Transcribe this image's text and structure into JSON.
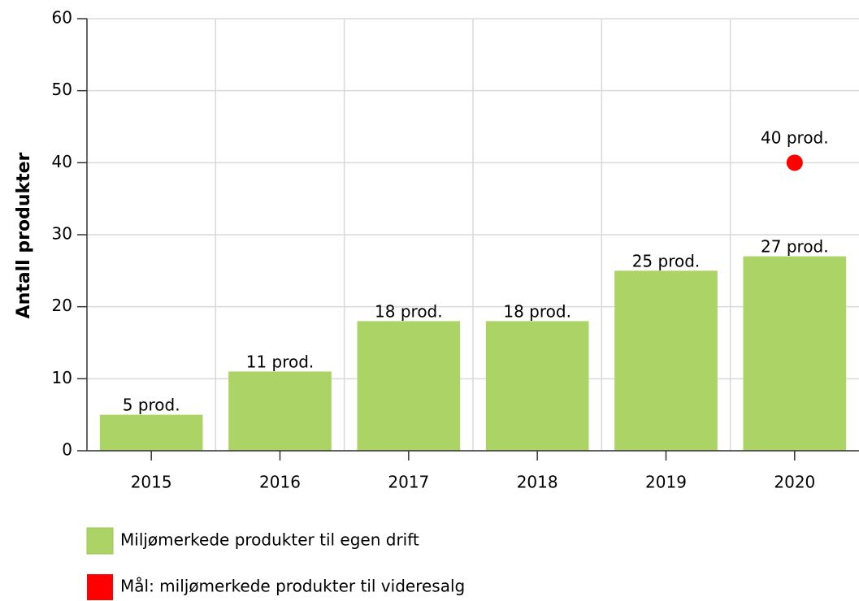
{
  "chart_data": {
    "type": "bar",
    "y_label": "Antall produkter",
    "categories": [
      "2015",
      "2016",
      "2017",
      "2018",
      "2019",
      "2020"
    ],
    "series": [
      {
        "name": "Miljømerkede produkter til egen drift",
        "type": "bar",
        "color": "#acd365",
        "values": [
          5,
          11,
          18,
          18,
          25,
          27
        ],
        "value_labels": [
          "5 prod.",
          "11 prod.",
          "18 prod.",
          "18 prod.",
          "25 prod.",
          "27 prod."
        ]
      },
      {
        "name": "Mål: miljømerkede produkter til videresalg",
        "type": "scatter",
        "color": "#ff0000",
        "values": [
          null,
          null,
          null,
          null,
          null,
          40
        ],
        "value_labels": [
          null,
          null,
          null,
          null,
          null,
          "40 prod."
        ]
      }
    ],
    "ylim": [
      0,
      60
    ],
    "yticks": [
      0,
      10,
      20,
      30,
      40,
      50,
      60
    ],
    "grid": true,
    "legend": "bottom"
  }
}
